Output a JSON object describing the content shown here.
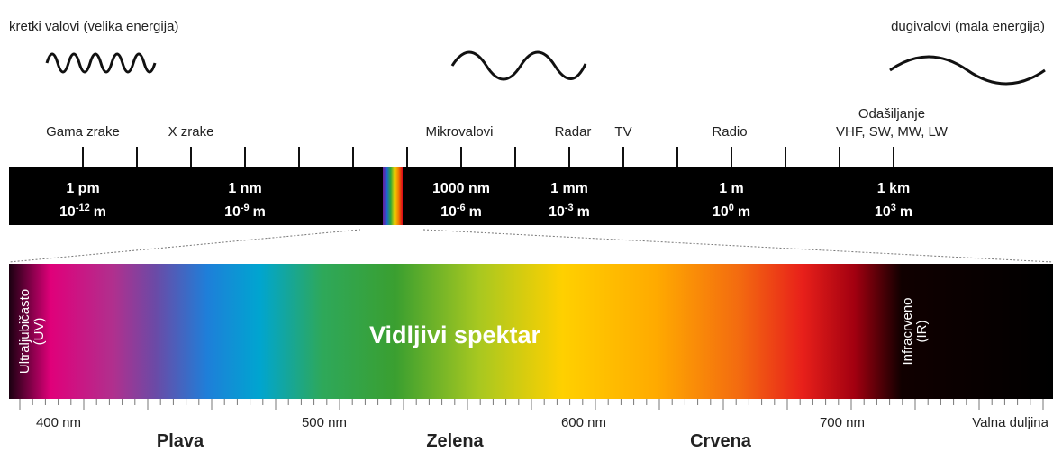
{
  "header": {
    "left": "kretki valovi (velika energija)",
    "right": "dugivalovi (mala energija)"
  },
  "bands": [
    {
      "label": "Gama zrake"
    },
    {
      "label": "X zrake"
    },
    {
      "label": "Mikrovalovi"
    },
    {
      "label": "Radar"
    },
    {
      "label": "TV"
    },
    {
      "label": "Radio"
    },
    {
      "label": "Odašiljanje",
      "sublabel": "VHF, SW, MW, LW"
    }
  ],
  "scale": [
    {
      "name": "1 pm",
      "base": "10",
      "power": "-12",
      "unit": "m"
    },
    {
      "name": "1 nm",
      "base": "10",
      "power": "-9",
      "unit": "m"
    },
    {
      "name": "1000 nm",
      "base": "10",
      "power": "-6",
      "unit": "m"
    },
    {
      "name": "1 mm",
      "base": "10",
      "power": "-3",
      "unit": "m"
    },
    {
      "name": "1 m",
      "base": "10",
      "power": "0",
      "unit": "m"
    },
    {
      "name": "1 km",
      "base": "10",
      "power": "3",
      "unit": "m"
    }
  ],
  "spectrum": {
    "title": "Vidljivi spektar",
    "uv": [
      "Ultraljubičasto",
      "(UV)"
    ],
    "ir": [
      "Infracrveno",
      "(IR)"
    ]
  },
  "wavelengths": [
    "400 nm",
    "500 nm",
    "600 nm",
    "700 nm"
  ],
  "axis_label": "Valna duljina",
  "colors": [
    "Plava",
    "Zelena",
    "Crvena"
  ]
}
